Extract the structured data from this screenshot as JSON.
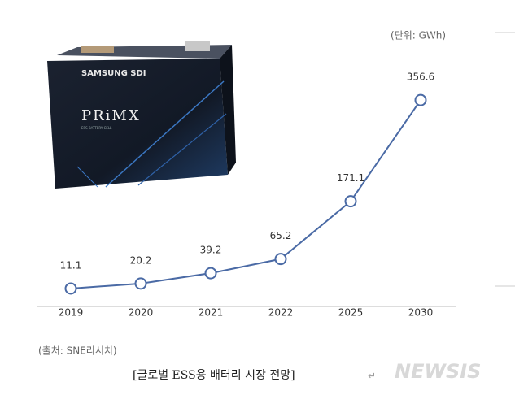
{
  "chart_data": {
    "type": "line",
    "unit_label": "(단위: GWh)",
    "categories": [
      "2019",
      "2020",
      "2021",
      "2022",
      "2025",
      "2030"
    ],
    "values": [
      11.1,
      20.2,
      39.2,
      65.2,
      171.1,
      356.6
    ],
    "color": "#4a6aa5",
    "ylim": [
      0,
      400
    ],
    "source": "(출처: SNE리서치)"
  },
  "image": {
    "brand": "SAMSUNG SDI",
    "product": "PRiMX",
    "product_subtitle": "ESS BATTERY CELL"
  },
  "caption": "[글로벌 ESS용 배터리 시장 전망]",
  "caption_mark": "↵",
  "watermark": "NEWSIS"
}
